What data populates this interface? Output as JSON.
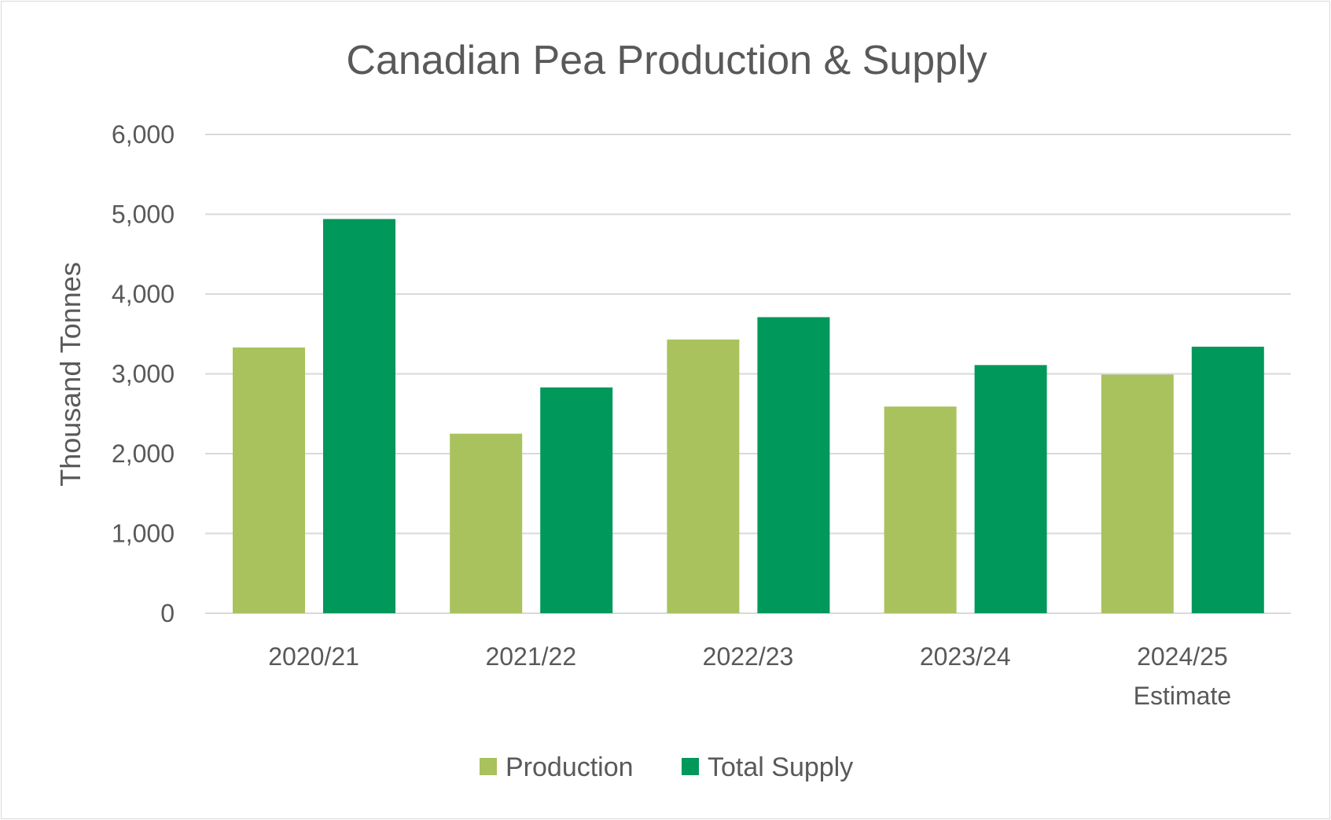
{
  "chart_data": {
    "type": "bar",
    "title": "Canadian Pea Production & Supply",
    "xlabel": "",
    "ylabel": "Thousand Tonnes",
    "ylim": [
      0,
      6000
    ],
    "yticks": [
      0,
      1000,
      2000,
      3000,
      4000,
      5000,
      6000
    ],
    "ytick_labels": [
      "0",
      "1,000",
      "2,000",
      "3,000",
      "4,000",
      "5,000",
      "6,000"
    ],
    "grid": true,
    "legend_position": "bottom",
    "categories": [
      [
        "2020/21"
      ],
      [
        "2021/22"
      ],
      [
        "2022/23"
      ],
      [
        "2023/24"
      ],
      [
        "2024/25",
        "Estimate"
      ]
    ],
    "series": [
      {
        "name": "Production",
        "color": "#a9c25d",
        "values": [
          3330,
          2250,
          3430,
          2590,
          2990
        ]
      },
      {
        "name": "Total Supply",
        "color": "#00985b",
        "values": [
          4940,
          2830,
          3710,
          3110,
          3340
        ]
      }
    ]
  }
}
